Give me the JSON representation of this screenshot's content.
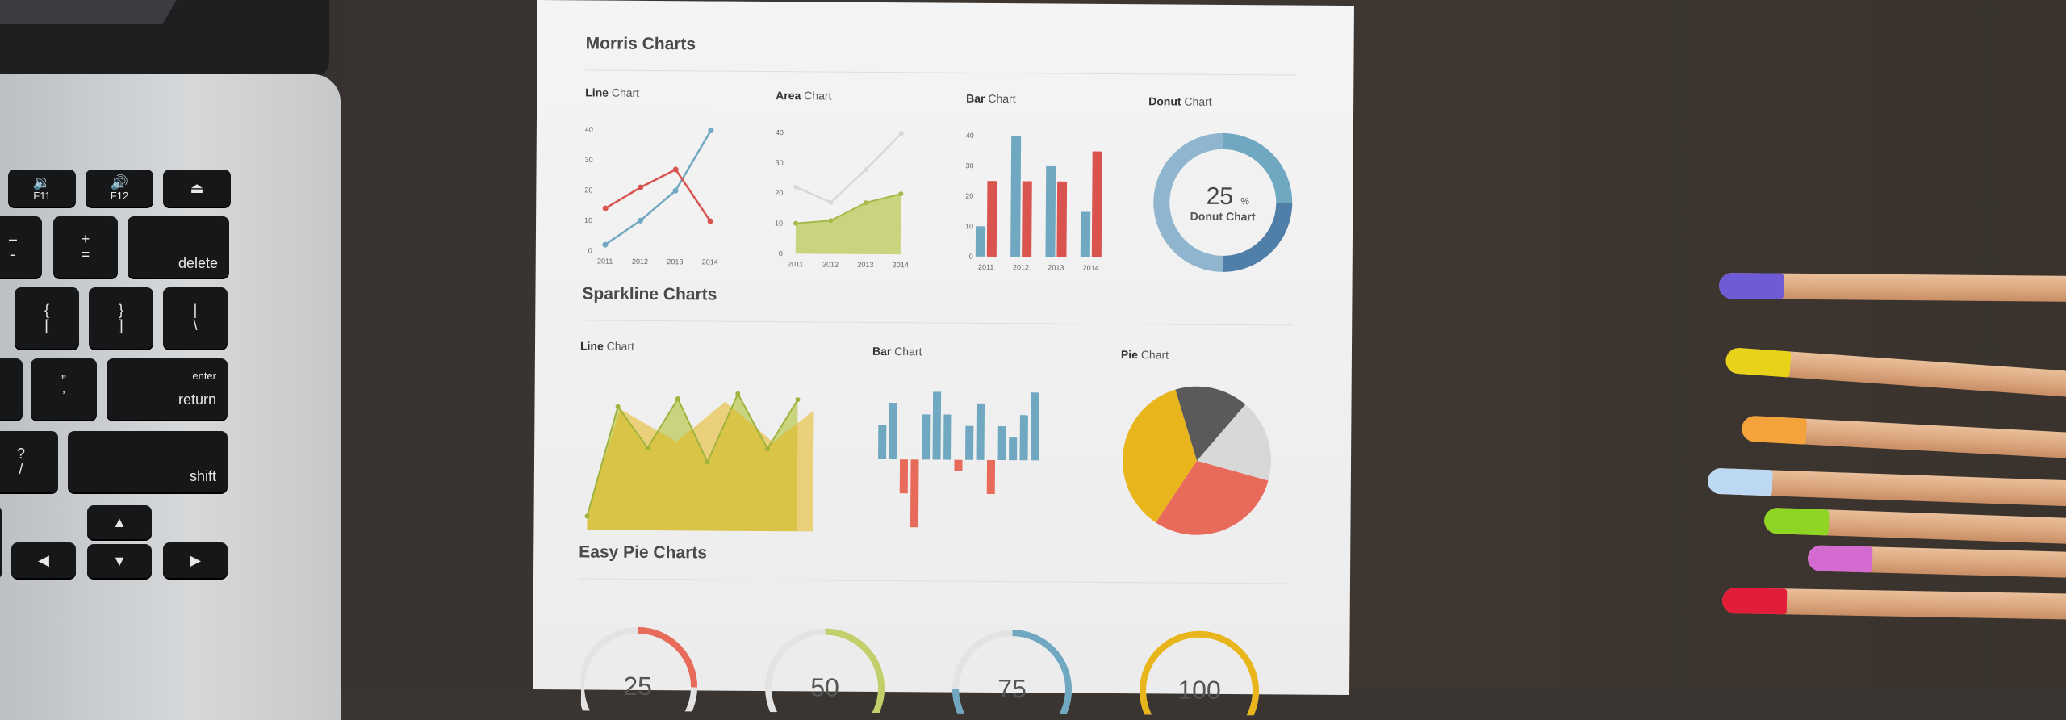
{
  "paper": {
    "section_titles": [
      "Morris Charts",
      "Sparkline Charts",
      "Easy Pie Charts"
    ],
    "morris": {
      "line": {
        "label_bold": "Line",
        "label_rest": " Chart",
        "yticks": [
          "40",
          "30",
          "20",
          "10",
          "0"
        ],
        "xticks": [
          "2011",
          "2012",
          "2013",
          "2014"
        ]
      },
      "area": {
        "label_bold": "Area",
        "label_rest": " Chart",
        "yticks": [
          "40",
          "30",
          "20",
          "10",
          "0"
        ],
        "xticks": [
          "2011",
          "2012",
          "2013",
          "2014"
        ]
      },
      "bar": {
        "label_bold": "Bar",
        "label_rest": " Chart",
        "yticks": [
          "40",
          "30",
          "20",
          "10",
          "0"
        ],
        "xticks": [
          "2011",
          "2012",
          "2013",
          "2014"
        ]
      },
      "donut": {
        "label_bold": "Donut",
        "label_rest": " Chart",
        "center_value": "25",
        "center_unit": "%",
        "center_label": "Donut Chart"
      }
    },
    "sparkline": {
      "line_label_bold": "Line",
      "line_label_rest": " Chart",
      "bar_label_bold": "Bar",
      "bar_label_rest": " Chart",
      "pie_label_bold": "Pie",
      "pie_label_rest": " Chart"
    },
    "easy_pie": {
      "values": [
        "25",
        "50",
        "75",
        "100"
      ]
    }
  },
  "laptop_keys": {
    "f11": "F11",
    "f12": "F12",
    "minus_top": "–",
    "minus_bottom": "-",
    "plus_top": "+",
    "plus_bottom": "=",
    "delete": "delete",
    "brace_l_top": "{",
    "brace_l_bottom": "[",
    "brace_r_top": "}",
    "brace_r_bottom": "]",
    "pipe_top": "|",
    "pipe_bottom": "\\",
    "enter": "enter",
    "return": "return",
    "quote_top": "”",
    "quote_bottom": "’",
    "question_top": "?",
    "question_bottom": "/",
    "shift": "shift"
  },
  "colors": {
    "red": "#d9534f",
    "blue": "#6fa8c0",
    "green": "#c3cf6a",
    "yellow": "#e8b61c",
    "gray": "#5a5a5a",
    "lightgray": "#d8d8d8",
    "salmon": "#e86a5a"
  },
  "chart_data": [
    {
      "type": "line",
      "title": "Line Chart",
      "x": [
        "2011",
        "2012",
        "2013",
        "2014"
      ],
      "ylim": [
        0,
        40
      ],
      "series": [
        {
          "values": [
            2,
            10,
            20,
            40
          ]
        },
        {
          "values": [
            14,
            21,
            27,
            10
          ]
        }
      ]
    },
    {
      "type": "area",
      "title": "Area Chart",
      "x": [
        "2011",
        "2012",
        "2013",
        "2014"
      ],
      "ylim": [
        0,
        40
      ],
      "series": [
        {
          "values": [
            10,
            11,
            17,
            20
          ]
        },
        {
          "values": [
            22,
            17,
            28,
            40
          ]
        }
      ]
    },
    {
      "type": "bar",
      "title": "Bar Chart",
      "categories": [
        "2011",
        "2012",
        "2013",
        "2014"
      ],
      "ylim": [
        0,
        40
      ],
      "series": [
        {
          "values": [
            10,
            40,
            30,
            15
          ]
        },
        {
          "values": [
            25,
            25,
            25,
            35
          ]
        }
      ]
    },
    {
      "type": "pie",
      "title": "Donut Chart",
      "values": [
        25,
        25,
        50
      ]
    },
    {
      "type": "area",
      "title": "Line Chart",
      "values": [
        5,
        45,
        30,
        48,
        25,
        50,
        30,
        48
      ]
    },
    {
      "type": "bar",
      "title": "Bar Chart",
      "values": [
        3,
        5,
        -3,
        -6,
        4,
        6,
        4,
        -1,
        3,
        5,
        -3,
        3,
        2,
        4,
        6
      ]
    },
    {
      "type": "pie",
      "title": "Pie Chart",
      "values": [
        36,
        30,
        18,
        16
      ]
    }
  ]
}
